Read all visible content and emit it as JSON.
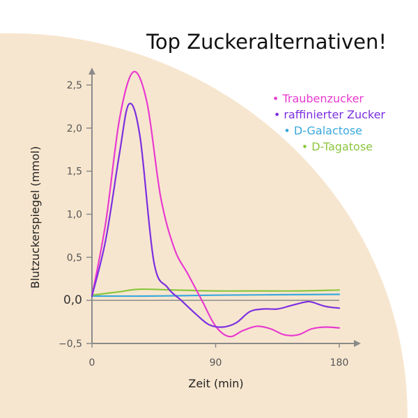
{
  "chart_data": {
    "type": "line",
    "title": "Top Zuckeralternativen!",
    "xlabel": "Zeit (min)",
    "ylabel": "Blutzuckerspiegel (mmol)",
    "xlim": [
      0,
      180
    ],
    "ylim": [
      -0.5,
      2.7
    ],
    "x_ticks": [
      {
        "value": 0,
        "label": "0"
      },
      {
        "value": 90,
        "label": "90"
      },
      {
        "value": 180,
        "label": "180"
      }
    ],
    "y_ticks": [
      {
        "value": 2.5,
        "label": "2,5"
      },
      {
        "value": 2.0,
        "label": "2,0"
      },
      {
        "value": 1.5,
        "label": "1,5"
      },
      {
        "value": 1.0,
        "label": "1,0"
      },
      {
        "value": 0.5,
        "label": "0,5"
      },
      {
        "value": 0.0,
        "label": "0,0"
      },
      {
        "value": -0.5,
        "label": "−0,5"
      }
    ],
    "legend_position": "top-right",
    "series": [
      {
        "name": "Traubenzucker",
        "color": "#e83ad0",
        "x": [
          0,
          10,
          20,
          30,
          40,
          50,
          60,
          70,
          80,
          90,
          100,
          110,
          120,
          130,
          140,
          150,
          160,
          170,
          180
        ],
        "y": [
          0.05,
          0.9,
          2.1,
          2.65,
          2.3,
          1.2,
          0.6,
          0.3,
          0.0,
          -0.3,
          -0.42,
          -0.35,
          -0.3,
          -0.33,
          -0.4,
          -0.4,
          -0.33,
          -0.31,
          -0.32
        ]
      },
      {
        "name": "raffinierter Zucker",
        "color": "#7b2ee0",
        "x": [
          0,
          10,
          20,
          27,
          35,
          45,
          55,
          65,
          75,
          85,
          95,
          105,
          115,
          125,
          135,
          145,
          155,
          160,
          170,
          180
        ],
        "y": [
          0.05,
          0.7,
          1.7,
          2.28,
          1.9,
          0.45,
          0.15,
          0.0,
          -0.15,
          -0.28,
          -0.31,
          -0.26,
          -0.13,
          -0.1,
          -0.1,
          -0.06,
          -0.02,
          -0.02,
          -0.07,
          -0.09
        ]
      },
      {
        "name": "D-Galactose",
        "color": "#3aa8dc",
        "x": [
          0,
          40,
          90,
          180
        ],
        "y": [
          0.05,
          0.05,
          0.06,
          0.07
        ]
      },
      {
        "name": "D-Tagatose",
        "color": "#8cc63f",
        "x": [
          0,
          20,
          35,
          60,
          90,
          120,
          150,
          180
        ],
        "y": [
          0.06,
          0.1,
          0.13,
          0.12,
          0.11,
          0.11,
          0.11,
          0.12
        ]
      }
    ]
  },
  "colors": {
    "background_shape": "#f7e6cf",
    "axis": "#8a8a8a",
    "zero_line": "#8a8a8a"
  }
}
